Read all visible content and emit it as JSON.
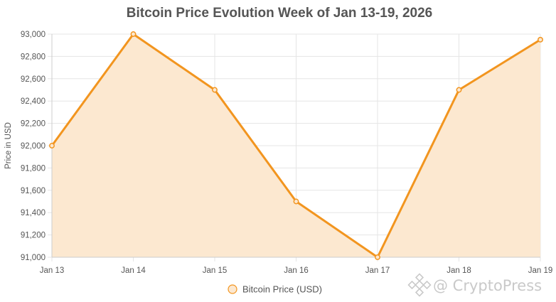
{
  "chart_data": {
    "type": "area",
    "title": "Bitcoin Price Evolution Week of Jan 13-19, 2026",
    "xlabel": "",
    "ylabel": "Price in USD",
    "categories": [
      "Jan 13",
      "Jan 14",
      "Jan 15",
      "Jan 16",
      "Jan 17",
      "Jan 18",
      "Jan 19"
    ],
    "series": [
      {
        "name": "Bitcoin Price (USD)",
        "values": [
          92000,
          93000,
          92500,
          91500,
          91000,
          92500,
          92950
        ]
      }
    ],
    "ylim": [
      91000,
      93000
    ],
    "yticks": [
      91000,
      91200,
      91400,
      91600,
      91800,
      92000,
      92200,
      92400,
      92600,
      92800,
      93000
    ],
    "ytick_labels": [
      "91,000",
      "91,200",
      "91,400",
      "91,600",
      "91,800",
      "92,000",
      "92,200",
      "92,400",
      "92,600",
      "92,800",
      "93,000"
    ],
    "grid": true,
    "legend_position": "bottom",
    "colors": {
      "line": "#f2951f",
      "fill": "#fce8d0",
      "grid": "#e5e5e5",
      "axis": "#cccccc",
      "text": "#555555"
    }
  },
  "watermark": {
    "text": "@ CryptoPress",
    "icon": "binance-diamond-icon"
  }
}
